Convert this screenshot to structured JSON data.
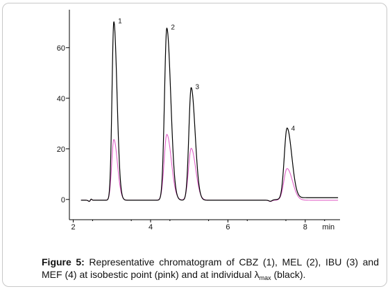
{
  "chart_data": {
    "type": "line",
    "xlabel": "",
    "ylabel": "",
    "x_unit_label": "min",
    "xlim": [
      1.9,
      8.9
    ],
    "ylim": [
      -8,
      75
    ],
    "x_ticks": [
      2,
      4,
      6,
      8
    ],
    "y_ticks": [
      0,
      20,
      40,
      60
    ],
    "grid": false,
    "baseline": -0.3,
    "peaks": [
      {
        "label": "1",
        "rt": 3.05,
        "height_black": 70.5,
        "height_pink": 24.0,
        "width": 0.06
      },
      {
        "label": "2",
        "rt": 4.42,
        "height_black": 68.0,
        "height_pink": 26.0,
        "width": 0.075
      },
      {
        "label": "3",
        "rt": 5.05,
        "height_black": 44.5,
        "height_pink": 20.5,
        "width": 0.075
      },
      {
        "label": "4",
        "rt": 7.53,
        "height_black": 28.0,
        "height_pink": 12.5,
        "width": 0.09
      }
    ],
    "series": [
      {
        "name": "",
        "color": "#000000"
      },
      {
        "name": "",
        "color": "#e060c8"
      }
    ]
  },
  "caption": {
    "label": "Figure 5:",
    "text_before_lambda": " Representative chromatogram of CBZ (1), MEL (2), IBU (3) and MEF (4) at isobestic point (pink) and at individual ",
    "lambda": "λ",
    "subscript": "max",
    "text_after": " (black)."
  }
}
